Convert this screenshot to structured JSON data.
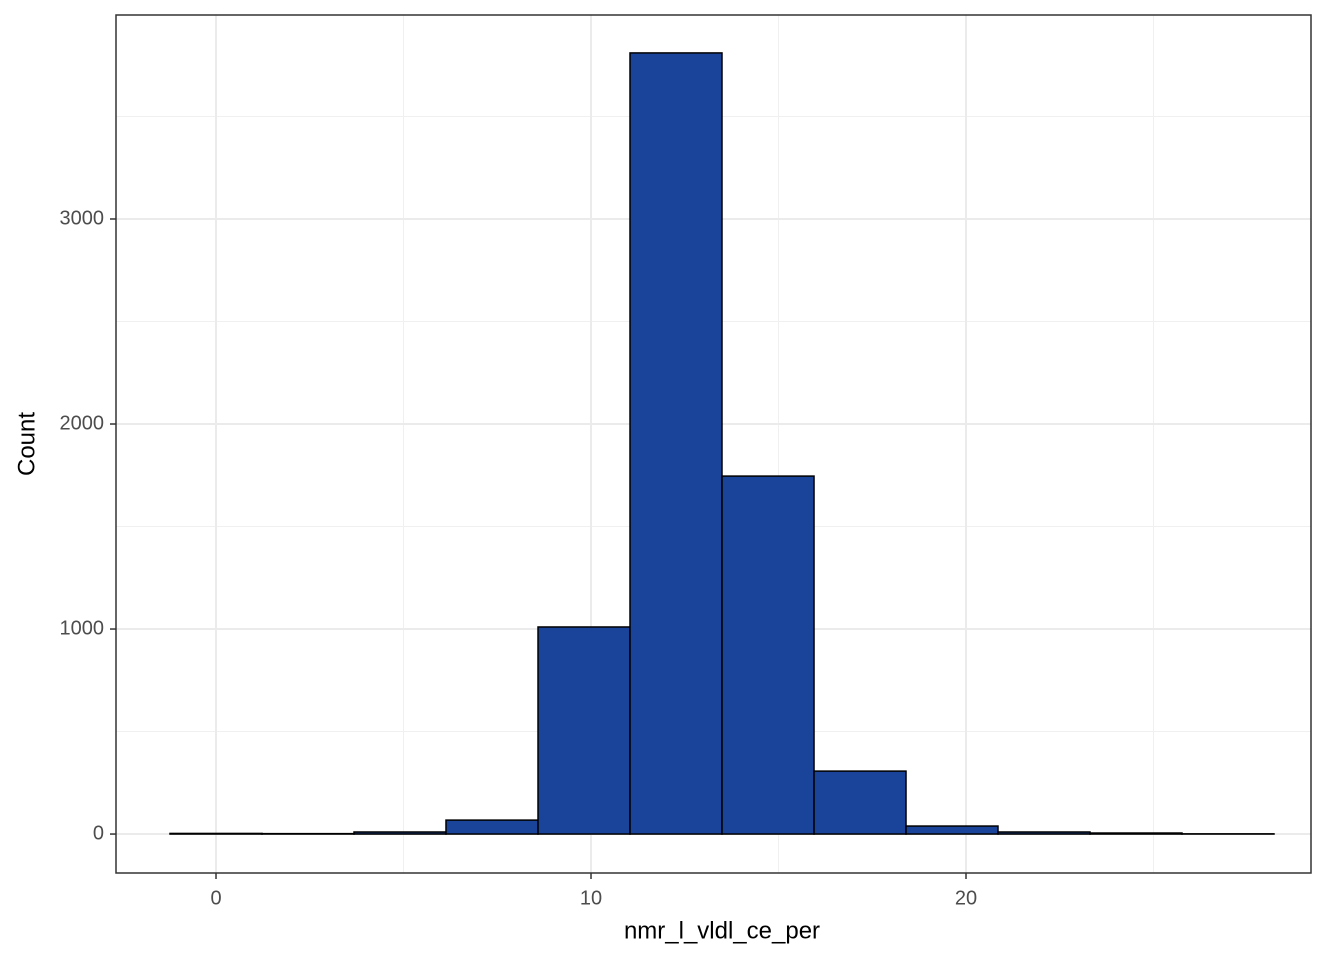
{
  "chart_data": {
    "type": "histogram",
    "x_label": "nmr_l_vldl_ce_per",
    "y_label": "Count",
    "bins": [
      -1.227,
      1.227,
      3.68,
      6.133,
      8.587,
      11.04,
      13.493,
      15.947,
      18.4,
      20.853,
      23.307,
      25.76,
      28.213
    ],
    "values": [
      3,
      2,
      10,
      68,
      1010,
      3810,
      1746,
      307,
      39,
      10,
      5,
      1
    ],
    "color": "#1a4499",
    "edge_color": "#000000",
    "xlim": [
      -2.667,
      29.2
    ],
    "ylim": [
      -190,
      3995
    ],
    "xticks": [
      0,
      10,
      20
    ],
    "yticks": [
      0,
      1000,
      2000,
      3000
    ],
    "minor_xticks": [
      5,
      15,
      25
    ],
    "minor_yticks": [
      500,
      1500,
      2500,
      3500
    ],
    "grid": true
  }
}
